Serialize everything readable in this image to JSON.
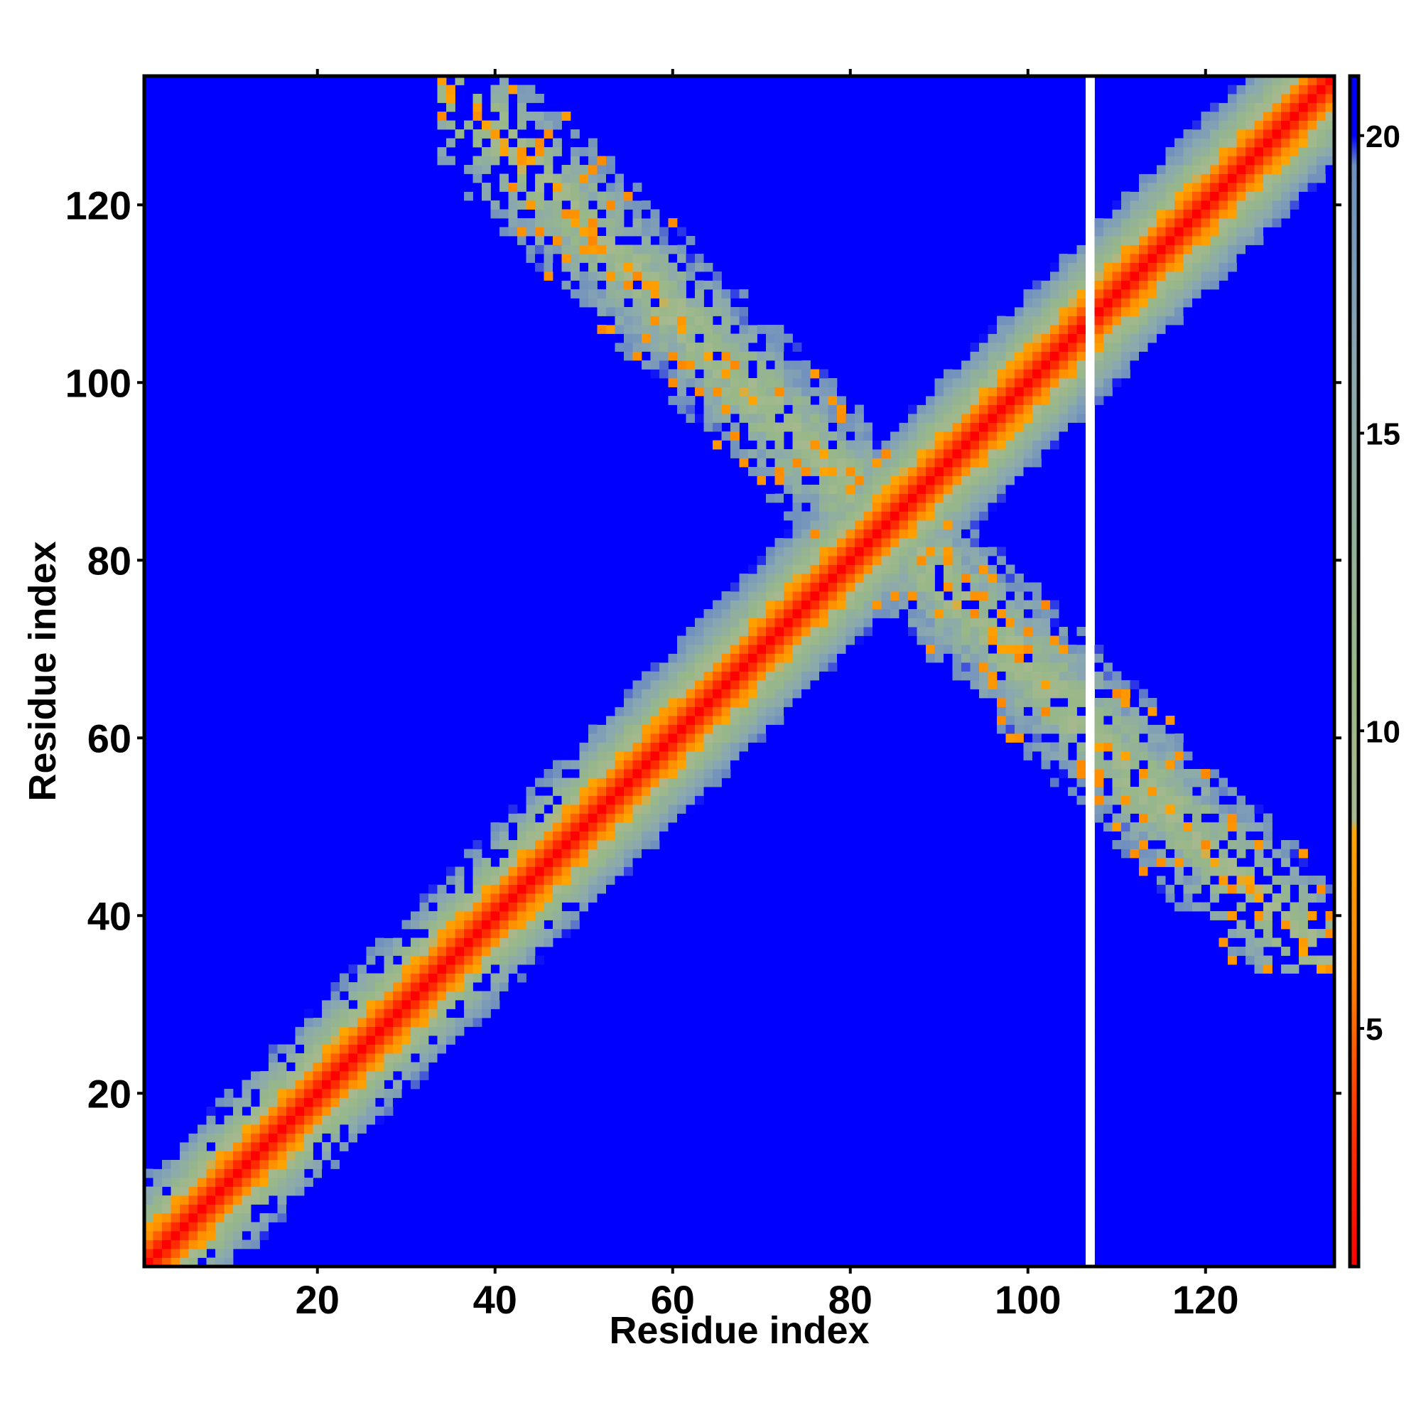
{
  "chart_data": {
    "type": "heatmap",
    "title": "",
    "xlabel": "Residue index",
    "ylabel": "Residue index",
    "n_residues": 134,
    "xlim": [
      0.5,
      134.5
    ],
    "ylim": [
      0.5,
      134.5
    ],
    "x_ticks": [
      20,
      40,
      60,
      80,
      100,
      120
    ],
    "y_ticks": [
      20,
      40,
      60,
      80,
      100,
      120
    ],
    "colorbar": {
      "min": 1,
      "max": 21,
      "ticks": [
        5,
        10,
        15,
        20
      ],
      "placement": "right",
      "colors": [
        {
          "value": 1,
          "color": "#ff0000"
        },
        {
          "value": 4,
          "color": "#ff4400"
        },
        {
          "value": 6,
          "color": "#ff8800"
        },
        {
          "value": 8.3,
          "color": "#ffa500"
        },
        {
          "value": 8.5,
          "color": "#a8b890"
        },
        {
          "value": 11,
          "color": "#98b888"
        },
        {
          "value": 16,
          "color": "#8aa8b0"
        },
        {
          "value": 19.5,
          "color": "#6f8fbf"
        },
        {
          "value": 20,
          "color": "#0000ff"
        },
        {
          "value": 21,
          "color": "#0000ff"
        }
      ]
    },
    "background_color": "#0000ff",
    "structure": {
      "diagonal": {
        "from": 1,
        "to": 134,
        "band_halfwidth": 10
      },
      "antidiagonal": {
        "i_from": 33,
        "i_to": 134,
        "sum": 168,
        "band_halfwidth": 9
      },
      "gap_column": 107
    },
    "grid": false
  }
}
